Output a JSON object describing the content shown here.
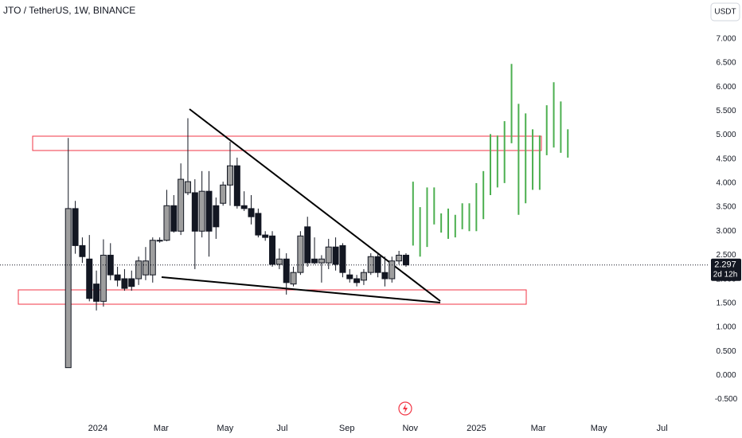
{
  "chart_data": {
    "type": "candlestick",
    "title": "JTO / TetherUS, 1W, BINANCE",
    "currency": "USDT",
    "x": [
      0,
      1,
      2,
      3,
      4,
      5,
      6,
      7,
      8,
      9,
      10,
      11,
      12,
      13,
      14,
      15,
      16,
      17,
      18,
      19,
      20,
      21,
      22,
      23,
      24,
      25,
      26,
      27,
      28,
      29,
      30,
      31,
      32,
      33,
      34,
      35,
      36,
      37,
      38,
      39,
      40,
      41,
      42,
      43,
      44,
      45,
      46,
      47,
      48
    ],
    "open": [
      0.16,
      3.47,
      2.7,
      2.42,
      1.9,
      1.54,
      2.5,
      2.09,
      2.01,
      2.01,
      2.01,
      2.09,
      2.09,
      2.8,
      2.81,
      3.53,
      3.0,
      3.8,
      3.8,
      3.0,
      3.83,
      3.53,
      3.58,
      3.96,
      4.36,
      3.53,
      3.47,
      3.37,
      2.92,
      2.9,
      2.31,
      2.42,
      1.9,
      2.14,
      3.09,
      2.42,
      2.34,
      2.34,
      2.67,
      2.7,
      2.09,
      2.01,
      1.98,
      2.14,
      2.47,
      2.14,
      2.01,
      2.38,
      2.5
    ],
    "high": [
      4.94,
      3.63,
      2.87,
      2.92,
      2.18,
      2.83,
      2.75,
      2.26,
      2.21,
      2.18,
      2.47,
      2.67,
      2.87,
      2.87,
      3.86,
      3.75,
      4.41,
      5.35,
      4.08,
      4.25,
      4.25,
      3.7,
      4.03,
      4.86,
      4.53,
      3.83,
      3.75,
      3.47,
      3.0,
      3.0,
      2.64,
      2.54,
      2.26,
      3.0,
      3.3,
      2.87,
      2.5,
      2.84,
      2.87,
      2.75,
      2.21,
      2.09,
      2.21,
      2.54,
      2.54,
      2.47,
      2.47,
      2.59,
      2.54
    ],
    "low": [
      0.16,
      2.53,
      2.34,
      1.54,
      1.35,
      1.43,
      1.98,
      1.85,
      1.76,
      1.76,
      1.88,
      1.98,
      1.93,
      2.76,
      2.79,
      2.97,
      2.92,
      3.75,
      2.21,
      2.87,
      2.47,
      2.84,
      3.53,
      3.53,
      3.47,
      3.42,
      3.14,
      2.87,
      2.8,
      2.26,
      2.21,
      1.68,
      1.85,
      2.09,
      2.26,
      2.31,
      1.93,
      2.21,
      2.18,
      2.04,
      1.93,
      1.85,
      1.88,
      2.09,
      2.04,
      1.85,
      1.93,
      2.31,
      2.26
    ],
    "close": [
      3.47,
      2.7,
      2.47,
      1.6,
      1.54,
      2.5,
      2.09,
      1.98,
      1.81,
      1.85,
      2.38,
      2.38,
      2.81,
      2.81,
      3.53,
      3.0,
      4.08,
      4.03,
      3.0,
      3.83,
      3.0,
      3.09,
      3.96,
      4.36,
      3.53,
      3.47,
      3.3,
      2.92,
      2.87,
      2.31,
      2.42,
      1.93,
      2.14,
      2.9,
      2.34,
      2.34,
      2.42,
      2.67,
      2.31,
      2.14,
      2.01,
      1.93,
      2.14,
      2.47,
      2.14,
      2.01,
      2.38,
      2.5,
      2.297
    ],
    "up_color": "#9e9e9e",
    "down_color": "#131722",
    "projection": {
      "color": "#4caf50",
      "x": [
        49,
        50,
        51,
        52,
        53,
        54,
        55,
        56,
        57,
        58,
        59,
        60,
        61,
        62,
        63,
        64,
        65,
        66,
        67,
        68,
        69,
        70,
        71
      ],
      "high": [
        4.03,
        3.5,
        3.91,
        3.91,
        3.37,
        3.47,
        3.34,
        3.58,
        3.58,
        4.0,
        4.25,
        5.02,
        4.99,
        5.29,
        6.48,
        5.65,
        5.45,
        5.12,
        4.99,
        5.62,
        6.1,
        5.7,
        5.12
      ],
      "low": [
        2.7,
        2.47,
        2.67,
        3.14,
        2.97,
        2.84,
        2.87,
        3.04,
        3.0,
        3.0,
        3.25,
        3.75,
        3.91,
        4.0,
        4.83,
        3.34,
        3.58,
        3.86,
        3.86,
        4.58,
        4.74,
        4.63,
        4.53
      ]
    },
    "last_price": 2.297,
    "countdown": "2d 12h",
    "xlim": [
      -9.7,
      91
    ],
    "xticks": [
      {
        "value": 4.2,
        "label": "2024"
      },
      {
        "value": 13.2,
        "label": "Mar"
      },
      {
        "value": 22.3,
        "label": "May"
      },
      {
        "value": 30.4,
        "label": "Jul"
      },
      {
        "value": 39.6,
        "label": "Sep"
      },
      {
        "value": 48.6,
        "label": "Nov"
      },
      {
        "value": 58.0,
        "label": "2025"
      },
      {
        "value": 66.8,
        "label": "Mar"
      },
      {
        "value": 75.4,
        "label": "May"
      },
      {
        "value": 84.4,
        "label": "Jul"
      }
    ],
    "ylim": [
      -0.84,
      7.81
    ],
    "yticks": [
      {
        "value": 7,
        "label": "7.000"
      },
      {
        "value": 6.5,
        "label": "6.500"
      },
      {
        "value": 6,
        "label": "6.000"
      },
      {
        "value": 5.5,
        "label": "5.500"
      },
      {
        "value": 5,
        "label": "5.000"
      },
      {
        "value": 4.5,
        "label": "4.500"
      },
      {
        "value": 4,
        "label": "4.000"
      },
      {
        "value": 3.5,
        "label": "3.500"
      },
      {
        "value": 3,
        "label": "3.000"
      },
      {
        "value": 2.5,
        "label": "2.500"
      },
      {
        "value": 2,
        "label": "2.000"
      },
      {
        "value": 1.5,
        "label": "1.500"
      },
      {
        "value": 1,
        "label": "1.000"
      },
      {
        "value": 0.5,
        "label": "0.500"
      },
      {
        "value": 0,
        "label": "0.000"
      },
      {
        "value": -0.5,
        "label": "-0.500"
      }
    ]
  }
}
